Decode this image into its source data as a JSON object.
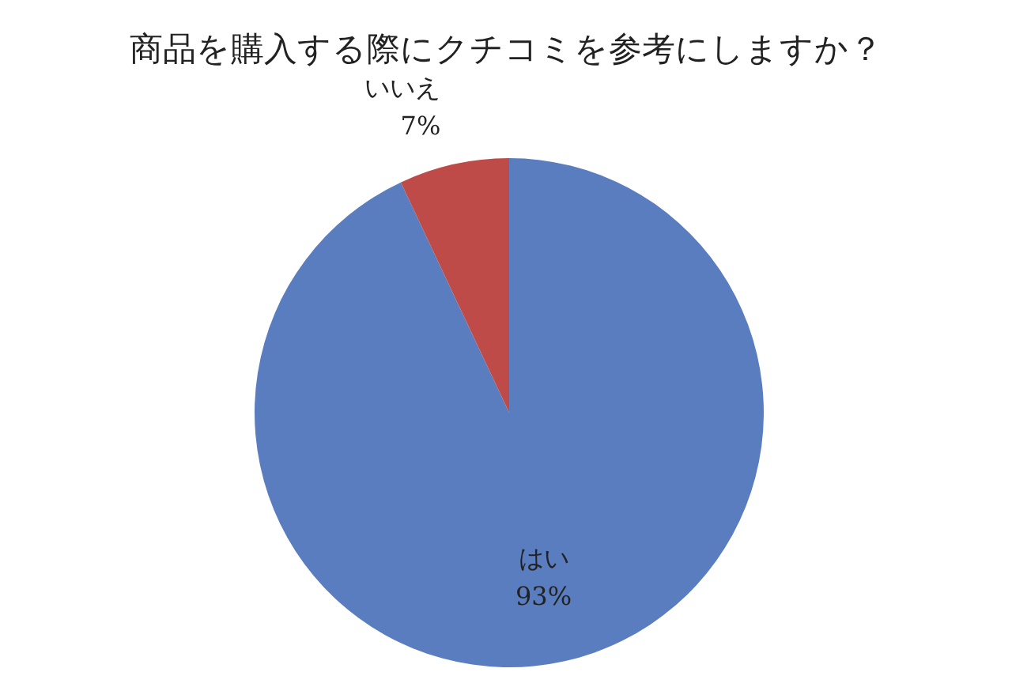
{
  "chart_data": {
    "type": "pie",
    "title": "商品を購入する際にクチコミを参考にしますか？",
    "categories": [
      "はい",
      "いいえ"
    ],
    "values": [
      93,
      7
    ],
    "colors": [
      "#5a7dbf",
      "#bf4b48"
    ],
    "value_labels": [
      "93%",
      "7%"
    ],
    "legend": false
  }
}
